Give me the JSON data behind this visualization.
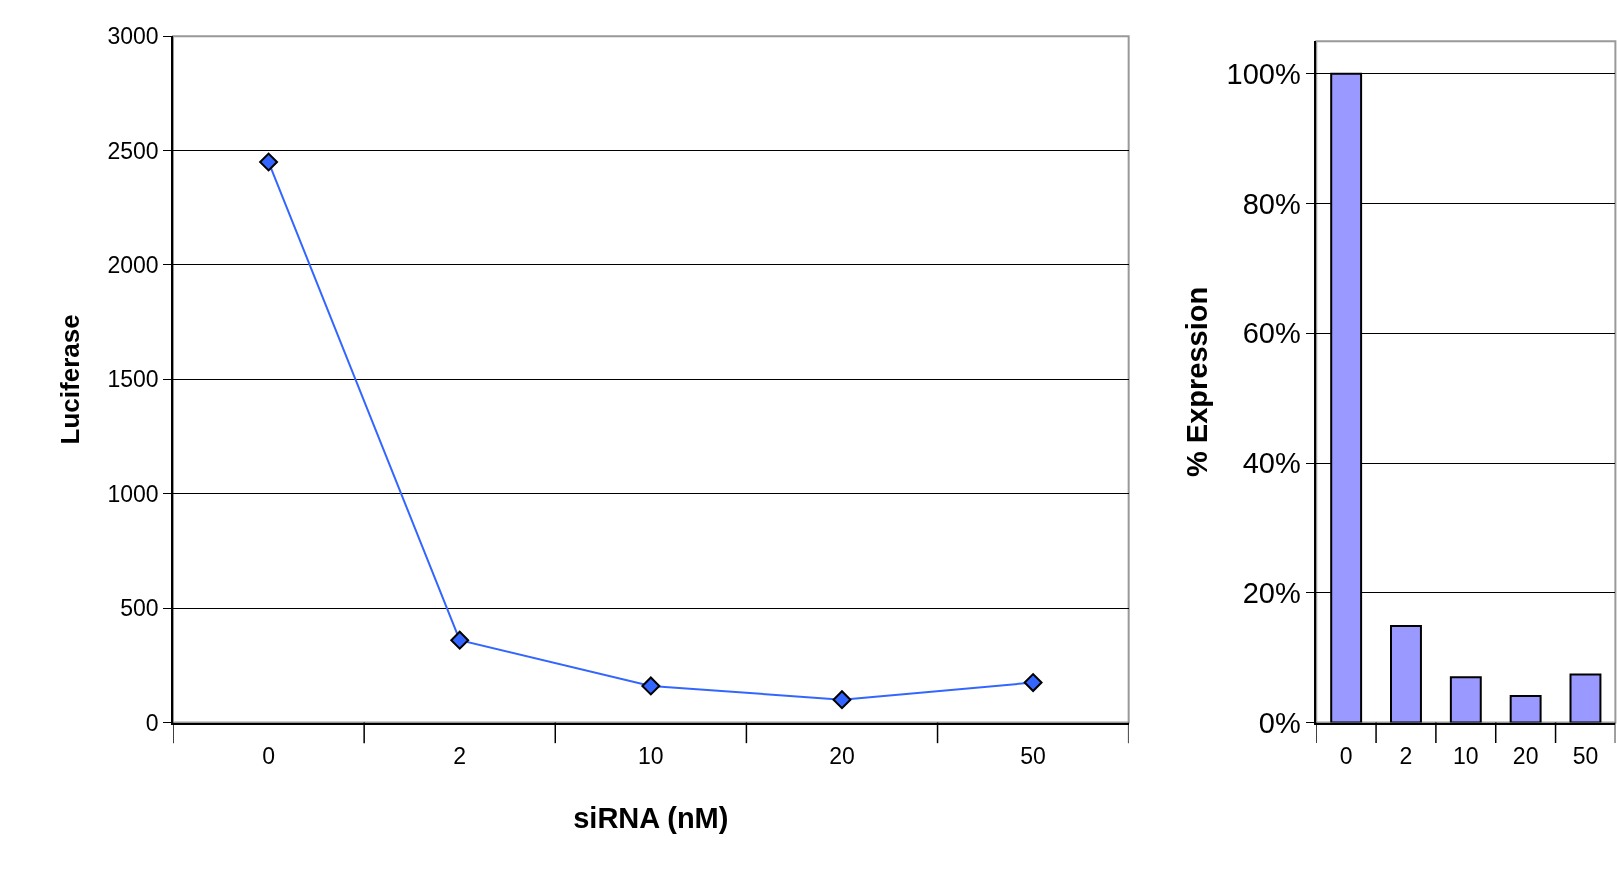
{
  "chart_data": [
    {
      "type": "line",
      "xlabel": "siRNA (nM)",
      "ylabel": "Luciferase",
      "categories": [
        "0",
        "2",
        "10",
        "20",
        "50"
      ],
      "series": [
        {
          "color": "#3366ff",
          "values": [
            2450,
            360,
            160,
            100,
            175
          ]
        }
      ],
      "ylim": [
        0,
        3000
      ],
      "yticks": [
        0,
        500,
        1000,
        1500,
        2000,
        2500,
        3000
      ],
      "grid": "y",
      "marker": "diamond",
      "line_style": "solid"
    },
    {
      "type": "bar",
      "ylabel": "% Expression",
      "categories": [
        "0",
        "2",
        "10",
        "20",
        "50"
      ],
      "series": [
        {
          "color": "#9999ff",
          "values": [
            100,
            14.9,
            7.0,
            4.1,
            7.4
          ]
        }
      ],
      "ylim": [
        0,
        105
      ],
      "yticks": [
        {
          "value": 0,
          "label": "0%"
        },
        {
          "value": 20,
          "label": "20%"
        },
        {
          "value": 40,
          "label": "40%"
        },
        {
          "value": 60,
          "label": "60%"
        },
        {
          "value": 80,
          "label": "80%"
        },
        {
          "value": 100,
          "label": "100%"
        }
      ],
      "grid": "y"
    }
  ]
}
